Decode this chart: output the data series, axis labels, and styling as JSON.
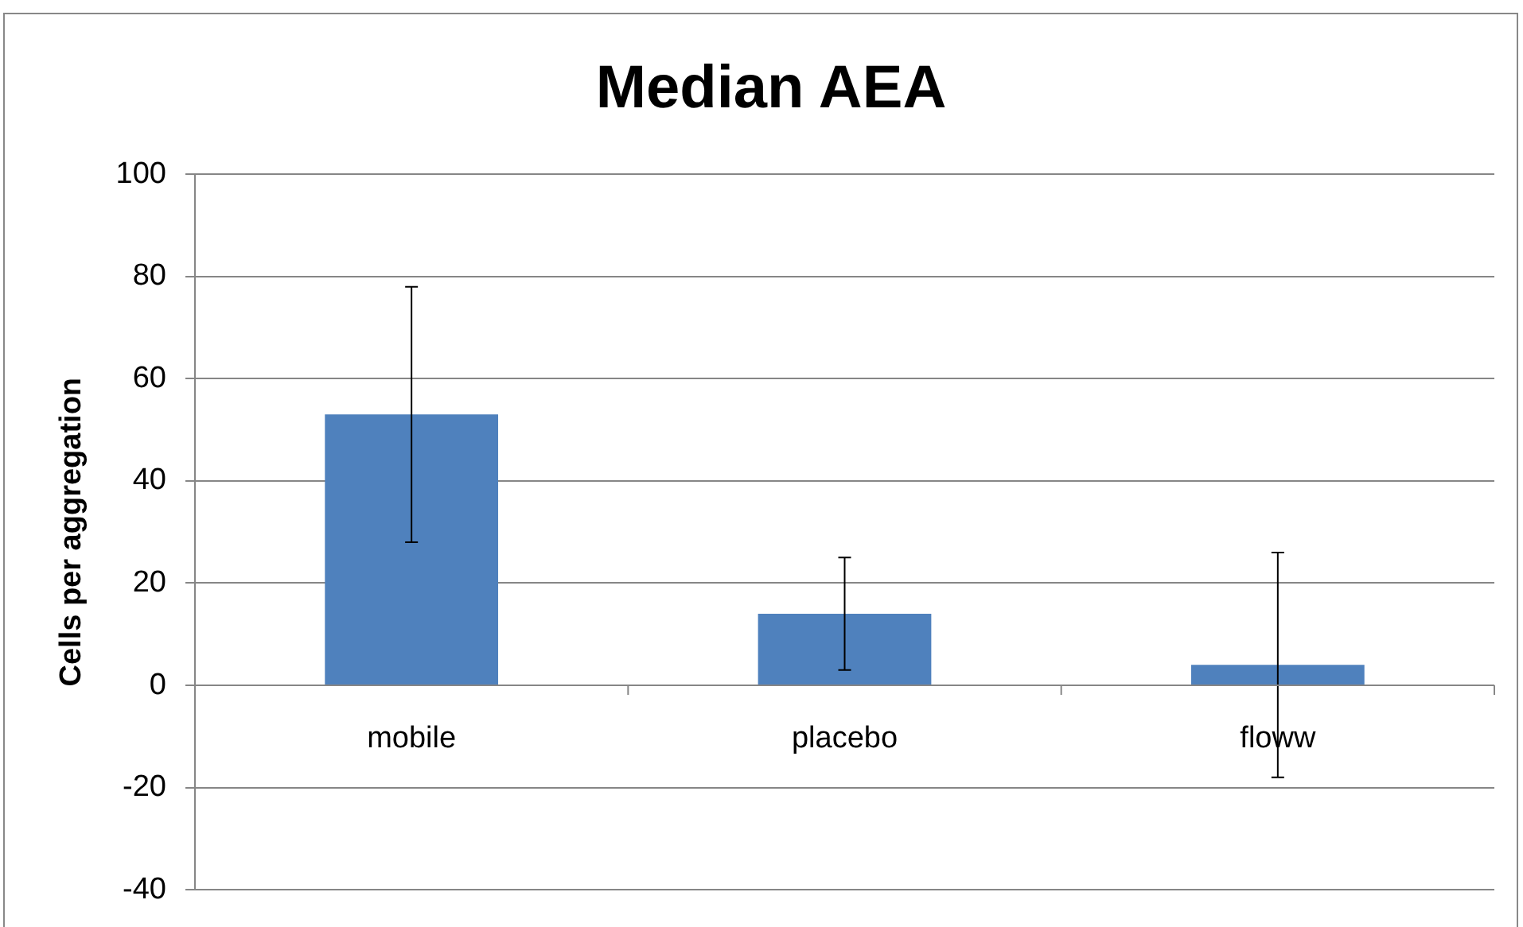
{
  "chart_data": {
    "type": "bar",
    "title": "Median AEA",
    "ylabel": "Cells per aggregation",
    "categories": [
      "mobile",
      "placebo",
      "floww"
    ],
    "values": [
      53,
      14,
      4
    ],
    "errors": [
      25,
      11,
      22
    ],
    "color": "#4f81bd",
    "ylim": [
      -40,
      100
    ],
    "yticks": [
      -40,
      -20,
      0,
      20,
      40,
      60,
      80,
      100
    ],
    "grid": "y",
    "legend": false
  }
}
